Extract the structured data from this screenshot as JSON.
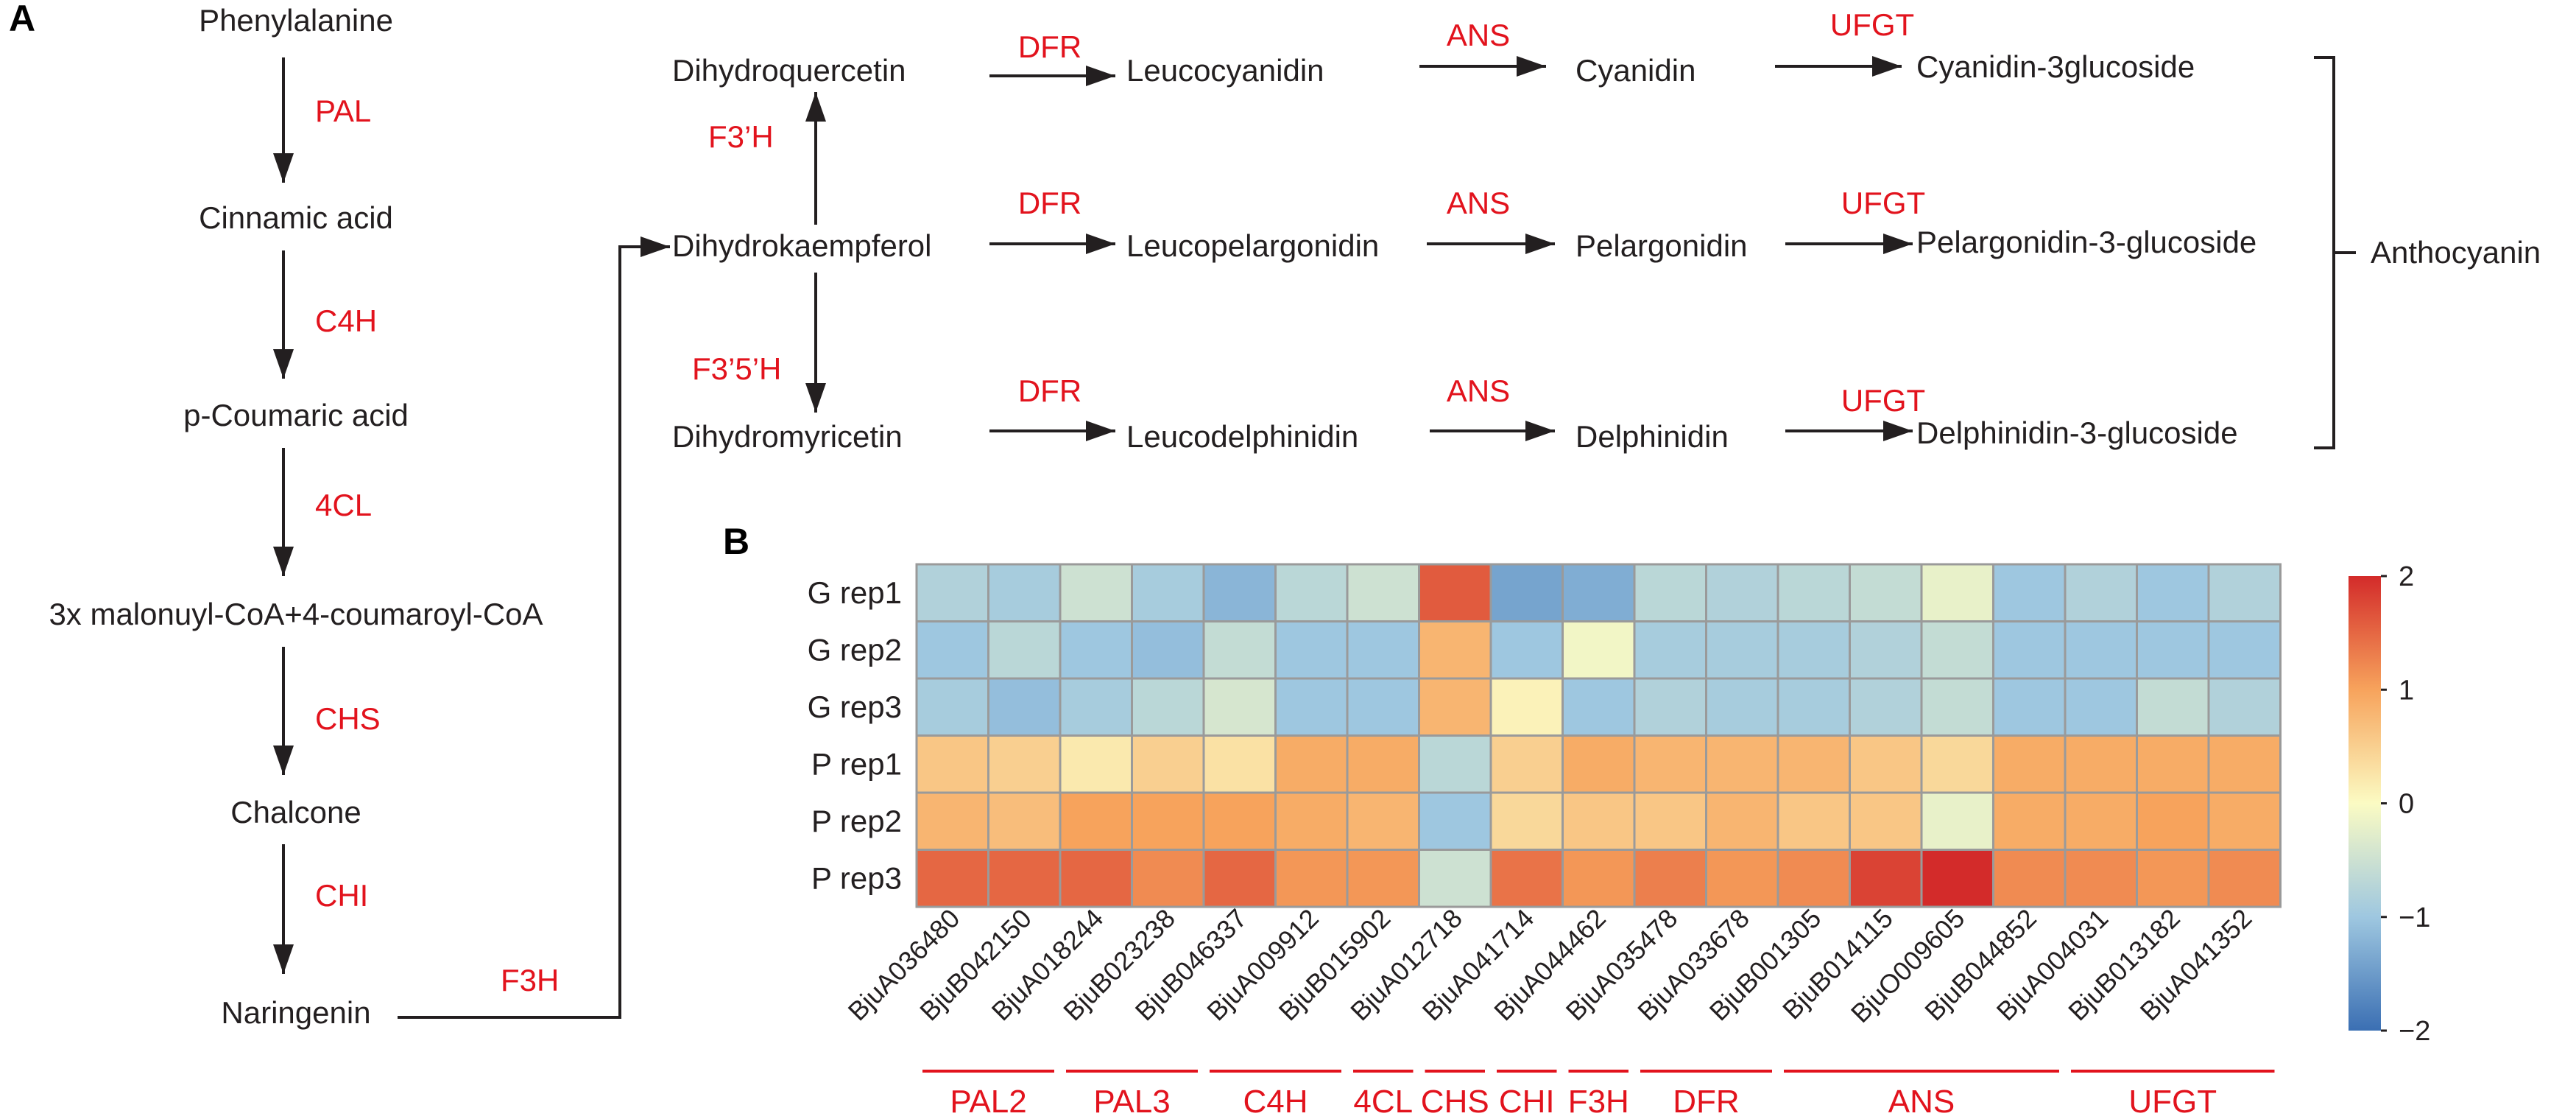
{
  "panels": {
    "a": "A",
    "b": "B"
  },
  "pathway": {
    "linear": [
      {
        "compound": "Phenylalanine",
        "enzyme": "PAL"
      },
      {
        "compound": "Cinnamic acid",
        "enzyme": "C4H"
      },
      {
        "compound": "p-Coumaric acid",
        "enzyme": "4CL"
      },
      {
        "compound": "3x malonuyl-CoA+4-coumaroyl-CoA",
        "enzyme": "CHS"
      },
      {
        "compound": "Chalcone",
        "enzyme": "CHI"
      },
      {
        "compound": "Naringenin",
        "enzyme": "F3H"
      }
    ],
    "branches": [
      {
        "start": "Dihydroquercetin",
        "e1": "DFR",
        "leuco": "Leucocyanidin",
        "e2": "ANS",
        "anthocyanidin": "Cyanidin",
        "e3": "UFGT",
        "glucoside": "Cyanidin-3glucoside"
      },
      {
        "start": "Dihydrokaempferol",
        "e1": "DFR",
        "leuco": "Leucopelargonidin",
        "e2": "ANS",
        "anthocyanidin": "Pelargonidin",
        "e3": "UFGT",
        "glucoside": "Pelargonidin-3-glucoside"
      },
      {
        "start": "Dihydromyricetin",
        "e1": "DFR",
        "leuco": "Leucodelphinidin",
        "e2": "ANS",
        "anthocyanidin": "Delphinidin",
        "e3": "UFGT",
        "glucoside": "Delphinidin-3-glucoside"
      }
    ],
    "hydroxylases": {
      "up": "F3’H",
      "down": "F3’5’H"
    },
    "product": "Anthocyanin"
  },
  "chart_data": {
    "type": "heatmap",
    "rows": [
      "G rep1",
      "G rep2",
      "G rep3",
      "P rep1",
      "P rep2",
      "P rep3"
    ],
    "columns": [
      "BjuA036480",
      "BjuB042150",
      "BjuA018244",
      "BjuB023238",
      "BjuB046337",
      "BjuA009912",
      "BjuB015902",
      "BjuA012718",
      "BjuA041714",
      "BjuA044462",
      "BjuA035478",
      "BjuA033678",
      "BjuB001305",
      "BjuB014115",
      "BjuO009605",
      "BjuB044852",
      "BjuA004031",
      "BjuB013182",
      "BjuA041352"
    ],
    "values": [
      [
        -0.8,
        -0.9,
        -0.5,
        -0.9,
        -1.2,
        -0.7,
        -0.5,
        1.6,
        -1.4,
        -1.3,
        -0.7,
        -0.8,
        -0.7,
        -0.6,
        -0.2,
        -1.0,
        -0.8,
        -1.0,
        -0.8
      ],
      [
        -1.0,
        -0.7,
        -1.0,
        -1.1,
        -0.6,
        -1.0,
        -1.0,
        0.8,
        -1.0,
        -0.1,
        -0.9,
        -0.9,
        -0.9,
        -0.8,
        -0.6,
        -1.0,
        -1.0,
        -1.0,
        -1.0
      ],
      [
        -0.9,
        -1.1,
        -0.9,
        -0.7,
        -0.4,
        -1.0,
        -1.0,
        0.8,
        0.1,
        -1.0,
        -0.8,
        -0.9,
        -0.9,
        -0.8,
        -0.6,
        -1.0,
        -1.0,
        -0.6,
        -0.8
      ],
      [
        0.6,
        0.5,
        0.2,
        0.5,
        0.3,
        0.9,
        0.9,
        -0.7,
        0.5,
        0.9,
        0.8,
        0.8,
        0.8,
        0.6,
        0.4,
        0.9,
        0.9,
        0.9,
        0.9
      ],
      [
        0.8,
        0.7,
        1.0,
        1.0,
        1.0,
        0.9,
        0.8,
        -1.0,
        0.4,
        0.6,
        0.6,
        0.8,
        0.6,
        0.6,
        -0.2,
        0.9,
        0.9,
        1.0,
        0.9
      ],
      [
        1.5,
        1.5,
        1.5,
        1.2,
        1.5,
        1.1,
        1.1,
        -0.5,
        1.4,
        1.1,
        1.3,
        1.1,
        1.2,
        1.8,
        2.0,
        1.2,
        1.2,
        1.1,
        1.2
      ]
    ],
    "groups": [
      {
        "label": "PAL2",
        "start": 0,
        "end": 2
      },
      {
        "label": "PAL3",
        "start": 2,
        "end": 4
      },
      {
        "label": "C4H",
        "start": 4,
        "end": 6
      },
      {
        "label": "4CL",
        "start": 6,
        "end": 7
      },
      {
        "label": "CHS",
        "start": 7,
        "end": 8
      },
      {
        "label": "CHI",
        "start": 8,
        "end": 9
      },
      {
        "label": "F3H",
        "start": 9,
        "end": 10
      },
      {
        "label": "DFR",
        "start": 10,
        "end": 12
      },
      {
        "label": "ANS",
        "start": 12,
        "end": 16
      },
      {
        "label": "UFGT",
        "start": 16,
        "end": 19
      }
    ],
    "colorbar": {
      "min": -2,
      "max": 2,
      "ticks": [
        "2",
        "1",
        "0",
        "−1",
        "−2"
      ],
      "colors": [
        "#3b6fb3",
        "#9ec7e0",
        "#fbfbc3",
        "#f7a35c",
        "#d32b2a"
      ]
    }
  }
}
